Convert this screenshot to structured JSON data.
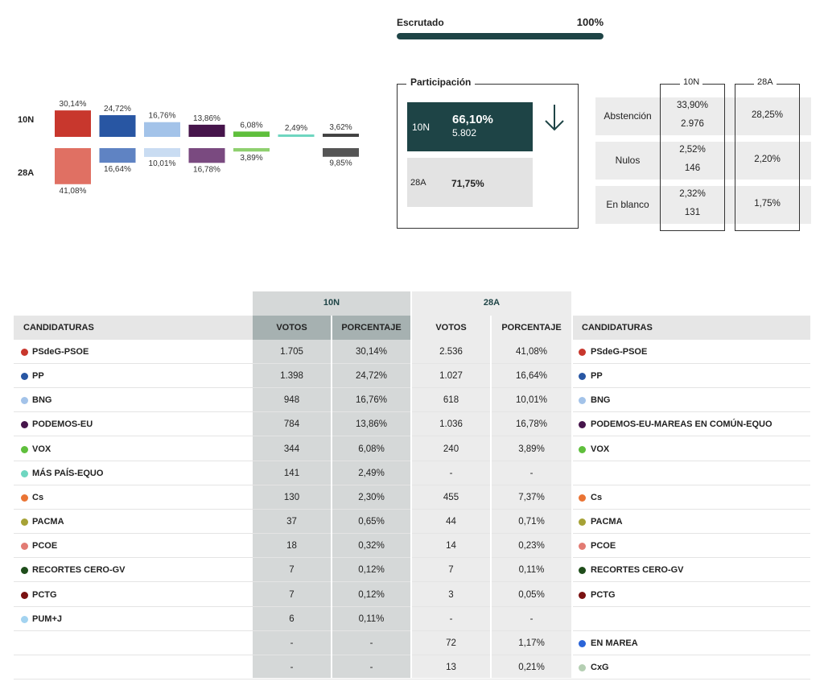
{
  "scrutiny": {
    "label": "Escrutado",
    "value": "100%",
    "fraction": 1.0
  },
  "chart_data": {
    "type": "bar",
    "rows": [
      "10N",
      "28A"
    ],
    "series": [
      {
        "color": "#c8372d",
        "color28": "#e07063",
        "v10": 30.14,
        "l10": "30,14%",
        "v28": 41.08,
        "l28": "41,08%"
      },
      {
        "color": "#2856a3",
        "color28": "#5f83c3",
        "v10": 24.72,
        "l10": "24,72%",
        "v28": 16.64,
        "l28": "16,64%"
      },
      {
        "color": "#a3c3e9",
        "color28": "#c9dcf2",
        "v10": 16.76,
        "l10": "16,76%",
        "v28": 10.01,
        "l28": "10,01%"
      },
      {
        "color": "#46154b",
        "color28": "#7a4a80",
        "v10": 13.86,
        "l10": "13,86%",
        "v28": 16.78,
        "l28": "16,78%"
      },
      {
        "color": "#5fbf3c",
        "color28": "#8fd06f",
        "v10": 6.08,
        "l10": "6,08%",
        "v28": 3.89,
        "l28": "3,89%"
      },
      {
        "color": "#6ed6c0",
        "color28": "",
        "v10": 2.49,
        "l10": "2,49%",
        "v28": null,
        "l28": ""
      },
      {
        "color": "#424242",
        "color28": "#555555",
        "v10": 3.62,
        "l10": "3,62%",
        "v28": 9.85,
        "l28": "9,85%"
      }
    ]
  },
  "participation": {
    "title": "Participación",
    "n10": {
      "label": "10N",
      "pct": "66,10%",
      "votes": "5.802"
    },
    "a28": {
      "label": "28A",
      "pct": "71,75%"
    }
  },
  "abstention": {
    "col10": "10N",
    "col28": "28A",
    "rows": [
      {
        "label": "Abstención",
        "pct10": "33,90%",
        "num10": "2.976",
        "pct28": "28,25%"
      },
      {
        "label": "Nulos",
        "pct10": "2,52%",
        "num10": "146",
        "pct28": "2,20%"
      },
      {
        "label": "En blanco",
        "pct10": "2,32%",
        "num10": "131",
        "pct28": "1,75%"
      }
    ]
  },
  "results": {
    "group10": "10N",
    "group28": "28A",
    "headers": {
      "cand": "CANDIDATURAS",
      "votes": "VOTOS",
      "pct": "PORCENTAJE"
    },
    "rows": [
      {
        "left": "PSdeG-PSOE",
        "lc": "#c8372d",
        "v10": "1.705",
        "p10": "30,14%",
        "v28": "2.536",
        "p28": "41,08%",
        "right": "PSdeG-PSOE",
        "rc": "#c8372d"
      },
      {
        "left": "PP",
        "lc": "#2856a3",
        "v10": "1.398",
        "p10": "24,72%",
        "v28": "1.027",
        "p28": "16,64%",
        "right": "PP",
        "rc": "#2856a3"
      },
      {
        "left": "BNG",
        "lc": "#a3c3e9",
        "v10": "948",
        "p10": "16,76%",
        "v28": "618",
        "p28": "10,01%",
        "right": "BNG",
        "rc": "#a3c3e9"
      },
      {
        "left": "PODEMOS-EU",
        "lc": "#46154b",
        "v10": "784",
        "p10": "13,86%",
        "v28": "1.036",
        "p28": "16,78%",
        "right": "PODEMOS-EU-MAREAS EN COMÚN-EQUO",
        "rc": "#46154b"
      },
      {
        "left": "VOX",
        "lc": "#5fbf3c",
        "v10": "344",
        "p10": "6,08%",
        "v28": "240",
        "p28": "3,89%",
        "right": "VOX",
        "rc": "#5fbf3c"
      },
      {
        "left": "MÁS PAÍS-EQUO",
        "lc": "#6ed6c0",
        "v10": "141",
        "p10": "2,49%",
        "v28": "-",
        "p28": "-",
        "right": "",
        "rc": ""
      },
      {
        "left": "Cs",
        "lc": "#ea7434",
        "v10": "130",
        "p10": "2,30%",
        "v28": "455",
        "p28": "7,37%",
        "right": "Cs",
        "rc": "#ea7434"
      },
      {
        "left": "PACMA",
        "lc": "#a6a236",
        "v10": "37",
        "p10": "0,65%",
        "v28": "44",
        "p28": "0,71%",
        "right": "PACMA",
        "rc": "#a6a236"
      },
      {
        "left": "PCOE",
        "lc": "#e27b73",
        "v10": "18",
        "p10": "0,32%",
        "v28": "14",
        "p28": "0,23%",
        "right": "PCOE",
        "rc": "#e27b73"
      },
      {
        "left": "RECORTES CERO-GV",
        "lc": "#1f4d1b",
        "v10": "7",
        "p10": "0,12%",
        "v28": "7",
        "p28": "0,11%",
        "right": "RECORTES CERO-GV",
        "rc": "#1f4d1b"
      },
      {
        "left": "PCTG",
        "lc": "#7a1111",
        "v10": "7",
        "p10": "0,12%",
        "v28": "3",
        "p28": "0,05%",
        "right": "PCTG",
        "rc": "#7a1111"
      },
      {
        "left": "PUM+J",
        "lc": "#a3d3f0",
        "v10": "6",
        "p10": "0,11%",
        "v28": "-",
        "p28": "-",
        "right": "",
        "rc": ""
      },
      {
        "left": "",
        "lc": "",
        "v10": "-",
        "p10": "-",
        "v28": "72",
        "p28": "1,17%",
        "right": "EN MAREA",
        "rc": "#2a64d8"
      },
      {
        "left": "",
        "lc": "",
        "v10": "-",
        "p10": "-",
        "v28": "13",
        "p28": "0,21%",
        "right": "CxG",
        "rc": "#b5cfb3"
      }
    ]
  }
}
